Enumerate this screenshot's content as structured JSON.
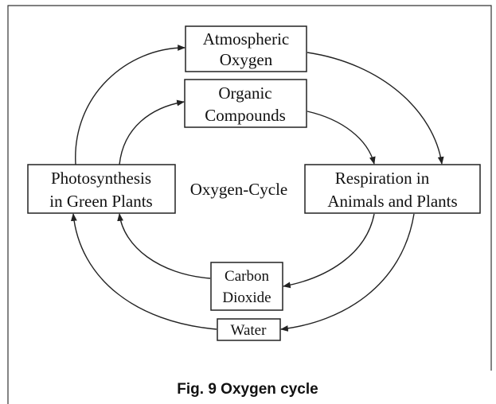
{
  "nodes": [
    {
      "lines": [
        "Atmospheric",
        "Oxygen"
      ]
    },
    {
      "lines": [
        "Organic",
        "Compounds"
      ]
    },
    {
      "lines": [
        "Photosynthesis",
        "in Green Plants"
      ]
    },
    {
      "lines": [
        "Respiration in",
        "Animals and Plants"
      ]
    },
    {
      "lines": [
        "Carbon",
        "Dioxide"
      ]
    },
    {
      "lines": [
        "Water"
      ]
    }
  ],
  "center_label": "Oxygen-Cycle",
  "caption": "Fig. 9 Oxygen cycle"
}
